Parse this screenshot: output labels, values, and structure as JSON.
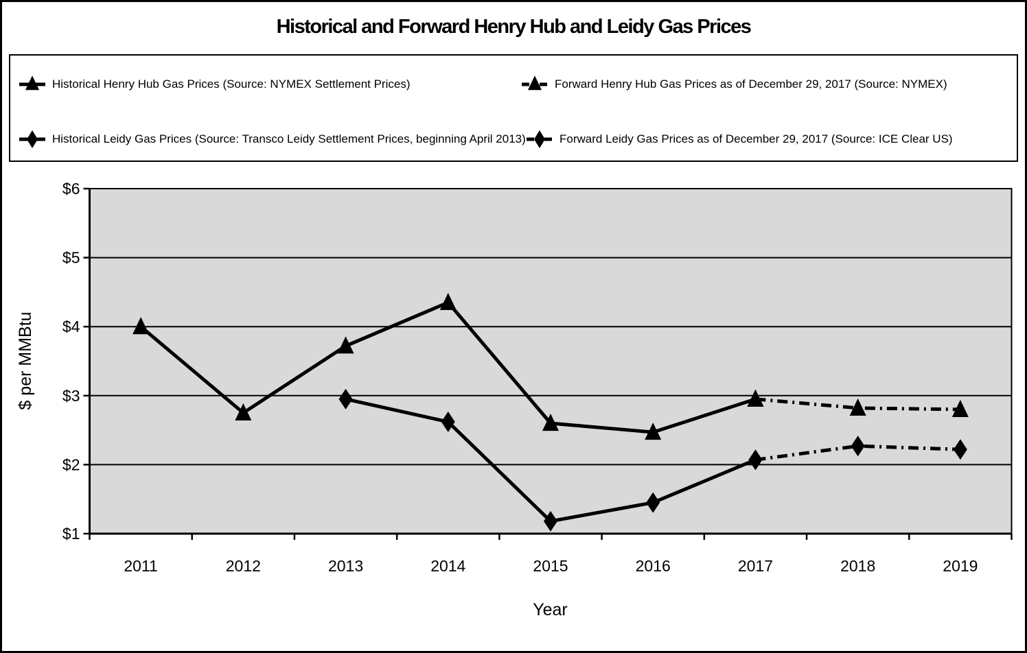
{
  "title": "Historical and Forward Henry Hub and Leidy Gas Prices",
  "legend": {
    "entries": [
      {
        "label": "Historical Henry Hub Gas Prices (Source: NYMEX Settlement Prices)",
        "marker": "triangle",
        "line": "solid"
      },
      {
        "label": "Forward Henry Hub Gas Prices as of December 29, 2017 (Source: NYMEX)",
        "marker": "triangle",
        "line": "dashdot"
      },
      {
        "label": "Historical Leidy Gas Prices (Source: Transco Leidy Settlement Prices, beginning April 2013)",
        "marker": "diamond",
        "line": "solid"
      },
      {
        "label": "Forward Leidy Gas Prices as of December 29, 2017 (Source: ICE Clear US)",
        "marker": "diamond",
        "line": "dashdot"
      }
    ]
  },
  "chart_data": {
    "type": "line",
    "title": "Historical and Forward Henry Hub and Leidy Gas Prices",
    "xlabel": "Year",
    "ylabel": "$ per MMBtu",
    "categories": [
      2011,
      2012,
      2013,
      2014,
      2015,
      2016,
      2017,
      2018,
      2019
    ],
    "x_tick_labels": [
      "2011",
      "2012",
      "2013",
      "2014",
      "2015",
      "2016",
      "2017",
      "2018",
      "2019"
    ],
    "y_ticks": [
      1,
      2,
      3,
      4,
      5,
      6
    ],
    "y_tick_labels": [
      "$1",
      "$2",
      "$3",
      "$4",
      "$5",
      "$6"
    ],
    "ylim": [
      1,
      6
    ],
    "grid": true,
    "legend_position": "top",
    "plot_bg": "#D9D9D9",
    "series_color": "#000000",
    "series": [
      {
        "name": "Historical Henry Hub Gas Prices (Source: NYMEX Settlement Prices)",
        "marker": "triangle",
        "line": "solid",
        "x": [
          2011,
          2012,
          2013,
          2014,
          2015,
          2016,
          2017
        ],
        "values": [
          4.0,
          2.75,
          3.72,
          4.35,
          2.6,
          2.47,
          2.95
        ]
      },
      {
        "name": "Forward Henry Hub Gas Prices as of December 29, 2017 (Source: NYMEX)",
        "marker": "triangle",
        "line": "dashdot",
        "x": [
          2017,
          2018,
          2019
        ],
        "values": [
          2.95,
          2.82,
          2.8
        ]
      },
      {
        "name": "Historical Leidy Gas Prices (Source: Transco Leidy Settlement Prices, beginning April 2013)",
        "marker": "diamond",
        "line": "solid",
        "x": [
          2013,
          2014,
          2015,
          2016,
          2017
        ],
        "values": [
          2.95,
          2.62,
          1.18,
          1.45,
          2.07
        ]
      },
      {
        "name": "Forward Leidy Gas Prices as of December 29, 2017 (Source: ICE Clear US)",
        "marker": "diamond",
        "line": "dashdot",
        "x": [
          2017,
          2018,
          2019
        ],
        "values": [
          2.07,
          2.27,
          2.22
        ]
      }
    ]
  }
}
